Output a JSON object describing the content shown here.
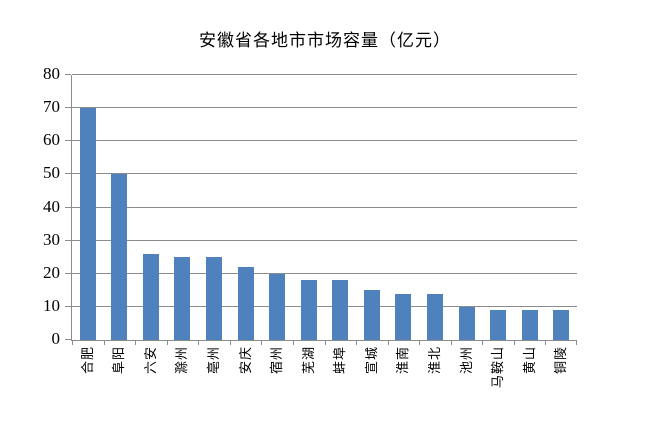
{
  "title": "安徽省各地市市场容量（亿元）",
  "colors": {
    "bar": "#4F81BD",
    "gridline": "#8C8C8C",
    "text": "#000000",
    "background": "#FFFFFF"
  },
  "chart_data": {
    "type": "bar",
    "title": "安徽省各地市市场容量（亿元）",
    "categories": [
      "合肥",
      "阜阳",
      "六安",
      "滁州",
      "亳州",
      "安庆",
      "宿州",
      "芜湖",
      "蚌埠",
      "宣城",
      "淮南",
      "淮北",
      "池州",
      "马鞍山",
      "黄山",
      "铜陵"
    ],
    "values": [
      70,
      50,
      26,
      25,
      25,
      22,
      20,
      18,
      18,
      15,
      14,
      14,
      10,
      9,
      9,
      9
    ],
    "xlabel": "",
    "ylabel": "",
    "ylim": [
      0,
      80
    ],
    "yticks": [
      0,
      10,
      20,
      30,
      40,
      50,
      60,
      70,
      80
    ],
    "grid": true,
    "legend": false,
    "bar_color": "#4F81BD"
  }
}
